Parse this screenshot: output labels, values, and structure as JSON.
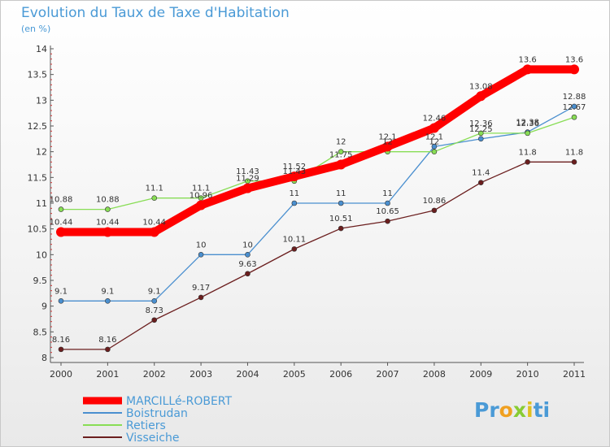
{
  "chart_data": {
    "type": "line",
    "title": "Evolution du Taux de Taxe d'Habitation",
    "subtitle": "(en %)",
    "xlabel": "",
    "ylabel": "",
    "categories": [
      "2000",
      "2001",
      "2002",
      "2003",
      "2004",
      "2005",
      "2006",
      "2007",
      "2008",
      "2009",
      "2010",
      "2011"
    ],
    "ylim": [
      8,
      14
    ],
    "yticks": [
      "8",
      "8.5",
      "9",
      "9.5",
      "10",
      "10.5",
      "11",
      "11.5",
      "12",
      "12.5",
      "13",
      "13.5",
      "14"
    ],
    "series": [
      {
        "name": "MARCILLé-ROBERT",
        "color": "#ff0000",
        "values": [
          10.44,
          10.44,
          10.44,
          10.96,
          11.29,
          11.52,
          11.75,
          12.1,
          12.46,
          13.08,
          13.6,
          13.6
        ],
        "labels": [
          "10.44",
          "10.44",
          "10.44",
          "10.96",
          "11.29",
          "11.52",
          "11.75",
          "12.1",
          "12.46",
          "13.08",
          "13.6",
          "13.6"
        ]
      },
      {
        "name": "Boistrudan",
        "color": "#4a8fcf",
        "values": [
          9.1,
          9.1,
          9.1,
          10,
          10,
          11,
          11,
          11,
          12.1,
          12.25,
          12.38,
          12.88
        ],
        "labels": [
          "9.1",
          "9.1",
          "9.1",
          "10",
          "10",
          "11",
          "11",
          "11",
          "12.1",
          "12.25",
          "12.38",
          "12.88"
        ]
      },
      {
        "name": "Retiers",
        "color": "#88dd55",
        "values": [
          10.88,
          10.88,
          11.1,
          11.1,
          11.43,
          11.43,
          12,
          12,
          12,
          12.36,
          12.36,
          12.67
        ],
        "labels": [
          "10.88",
          "10.88",
          "11.1",
          "11.1",
          "11.43",
          "11.43",
          "12",
          "12",
          "12",
          "12.36",
          "12.36",
          "12.67"
        ]
      },
      {
        "name": "Visseiche",
        "color": "#6b1e1e",
        "values": [
          8.16,
          8.16,
          8.73,
          9.17,
          9.63,
          10.11,
          10.51,
          10.65,
          10.86,
          11.4,
          11.8,
          11.8
        ],
        "labels": [
          "8.16",
          "8.16",
          "8.73",
          "9.17",
          "9.63",
          "10.11",
          "10.51",
          "10.65",
          "10.86",
          "11.4",
          "11.8",
          "11.8"
        ]
      }
    ],
    "legend_position": "bottom-left",
    "grid": false
  },
  "logo": {
    "parts": [
      "Pr",
      "o",
      "x",
      "i",
      "ti"
    ]
  }
}
